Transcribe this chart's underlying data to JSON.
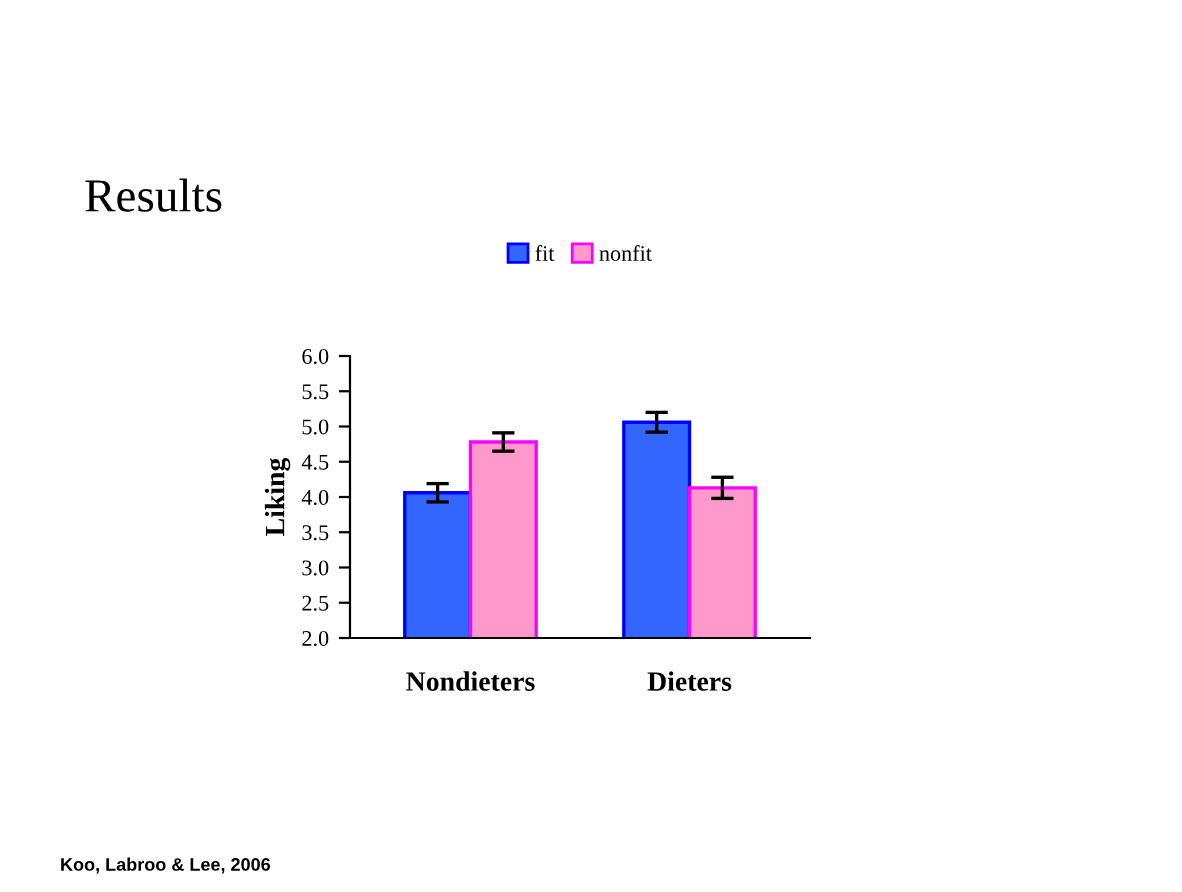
{
  "chart_data": {
    "type": "bar",
    "title": "Results",
    "ylabel": "Liking",
    "categories": [
      "Nondieters",
      "Dieters"
    ],
    "series": [
      {
        "name": "fit",
        "color": "#3366ff",
        "values": [
          4.06,
          5.06
        ],
        "errors": [
          0.13,
          0.14
        ]
      },
      {
        "name": "nonfit",
        "color": "#ff99cc",
        "values": [
          4.78,
          4.13
        ],
        "errors": [
          0.13,
          0.15
        ]
      }
    ],
    "ylim": [
      2.0,
      6.0
    ],
    "yticks": [
      {
        "value": 2.0,
        "label": "2.0"
      },
      {
        "value": 2.5,
        "label": "2.5"
      },
      {
        "value": 3.0,
        "label": "3.0"
      },
      {
        "value": 3.5,
        "label": "3.5"
      },
      {
        "value": 4.0,
        "label": "4.0"
      },
      {
        "value": 4.5,
        "label": "4.5"
      },
      {
        "value": 5.0,
        "label": "5.0"
      },
      {
        "value": 5.5,
        "label": "5.5"
      },
      {
        "value": 6.0,
        "label": "6.0"
      }
    ],
    "grid": false,
    "legend": "top",
    "annotations": [
      "Koo, Labroo & Lee, 2006"
    ]
  }
}
